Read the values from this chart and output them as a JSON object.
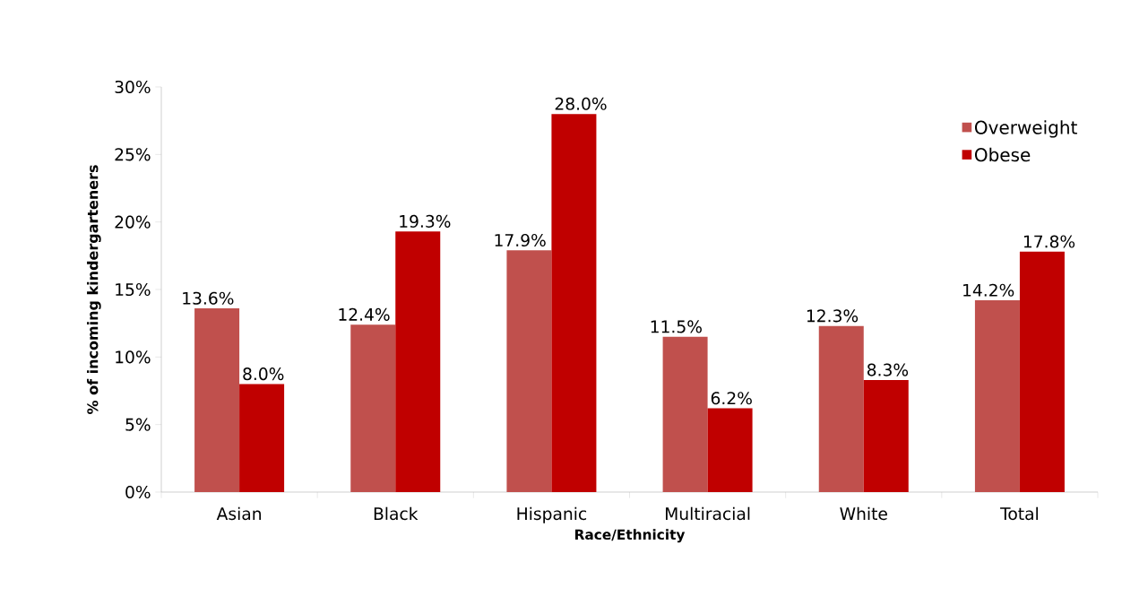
{
  "chart_data": {
    "type": "bar",
    "xlabel": "Race/Ethnicity",
    "ylabel": "% of incoming kindergarteners",
    "categories": [
      "Asian",
      "Black",
      "Hispanic",
      "Multiracial",
      "White",
      "Total"
    ],
    "series": [
      {
        "name": "Overweight",
        "color": "#c0504d",
        "values": [
          13.6,
          12.4,
          17.9,
          11.5,
          12.3,
          14.2
        ],
        "value_labels": [
          "13.6%",
          "12.4%",
          "17.9%",
          "11.5%",
          "12.3%",
          "14.2%"
        ]
      },
      {
        "name": "Obese",
        "color": "#c00000",
        "values": [
          8.0,
          19.3,
          28.0,
          6.2,
          8.3,
          17.8
        ],
        "value_labels": [
          "8.0%",
          "19.3%",
          "28.0%",
          "6.2%",
          "8.3%",
          "17.8%"
        ]
      }
    ],
    "ylim": [
      0,
      30
    ],
    "yticks": [
      {
        "value": 0,
        "label": "0%"
      },
      {
        "value": 5,
        "label": "5%"
      },
      {
        "value": 10,
        "label": "10%"
      },
      {
        "value": 15,
        "label": "15%"
      },
      {
        "value": 20,
        "label": "20%"
      },
      {
        "value": 25,
        "label": "25%"
      },
      {
        "value": 30,
        "label": "30%"
      }
    ],
    "legend": "top right",
    "grid": false
  }
}
